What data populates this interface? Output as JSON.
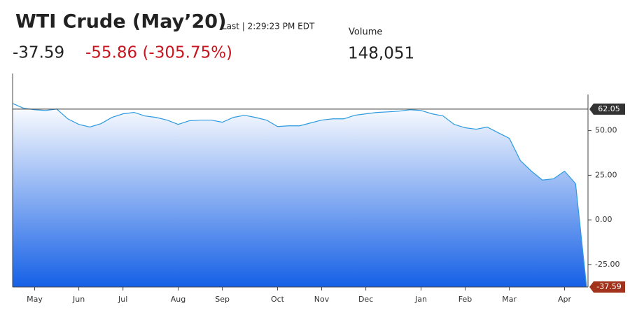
{
  "header": {
    "title": "WTI Crude (May’20)",
    "time": "Last | 2:29:23 PM EDT",
    "last": "-37.59",
    "change": "-55.86 (-305.75%)",
    "volume_label": "Volume",
    "volume": "148,051"
  },
  "chart_data": {
    "type": "area",
    "categories": [
      null,
      null,
      "May",
      null,
      null,
      null,
      "Jun",
      null,
      null,
      null,
      "Jul",
      null,
      null,
      null,
      null,
      "Aug",
      null,
      null,
      null,
      "Sep",
      null,
      null,
      null,
      null,
      "Oct",
      null,
      null,
      null,
      "Nov",
      null,
      null,
      null,
      "Dec",
      null,
      null,
      null,
      null,
      "Jan",
      null,
      null,
      null,
      "Feb",
      null,
      null,
      null,
      "Mar",
      null,
      null,
      null,
      null,
      "Apr",
      null,
      null
    ],
    "values": [
      65.2,
      62.5,
      61.7,
      61.3,
      62.1,
      56.6,
      53.5,
      52,
      53.9,
      57.4,
      59.4,
      60.2,
      58.2,
      57.4,
      55.9,
      53.5,
      55.5,
      55.9,
      55.9,
      54.7,
      57.4,
      58.6,
      57.4,
      55.9,
      52.3,
      52.7,
      52.7,
      54.3,
      55.9,
      56.6,
      56.6,
      58.6,
      59.4,
      60.2,
      60.5,
      60.9,
      61.7,
      61.3,
      59.4,
      58.2,
      53.5,
      51.6,
      50.8,
      52,
      48.8,
      45.7,
      33.2,
      27.3,
      22.3,
      23,
      27.3,
      20.3,
      -37.59
    ],
    "value_labels": {
      "52": "-37.59"
    },
    "color": "#2b9ae0",
    "fill_colors": [
      "#ffffff",
      "#1560e6"
    ],
    "reference_line": {
      "value": 62.05,
      "label": "62.05",
      "color": "#333333"
    },
    "last_color": "#a3321c",
    "ylim": [
      -37.6,
      82
    ],
    "yticks": [
      {
        "value": -25,
        "label": "-25.00"
      },
      {
        "value": 0,
        "label": "0.00"
      },
      {
        "value": 25,
        "label": "25.00"
      },
      {
        "value": 50,
        "label": "50.00"
      }
    ]
  }
}
